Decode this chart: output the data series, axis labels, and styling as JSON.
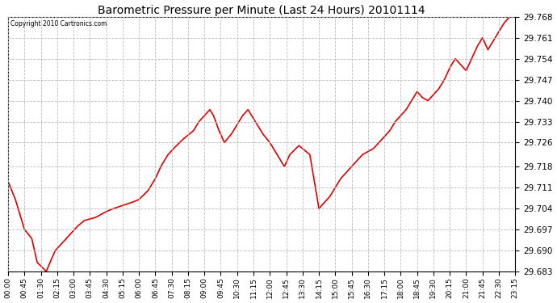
{
  "title": "Barometric Pressure per Minute (Last 24 Hours) 20101114",
  "copyright": "Copyright 2010 Cartronics.com",
  "line_color": "#dd0000",
  "background_color": "#ffffff",
  "grid_color": "#bbbbbb",
  "yticks": [
    29.683,
    29.69,
    29.697,
    29.704,
    29.711,
    29.718,
    29.726,
    29.733,
    29.74,
    29.747,
    29.754,
    29.761,
    29.768
  ],
  "ylim": [
    29.683,
    29.768
  ],
  "xtick_labels": [
    "00:00",
    "00:45",
    "01:30",
    "02:15",
    "03:00",
    "03:45",
    "04:30",
    "05:15",
    "06:00",
    "06:45",
    "07:30",
    "08:15",
    "09:00",
    "09:45",
    "10:30",
    "11:15",
    "12:00",
    "12:45",
    "13:30",
    "14:15",
    "15:00",
    "15:45",
    "16:30",
    "17:15",
    "18:00",
    "18:45",
    "19:30",
    "20:15",
    "21:00",
    "21:45",
    "22:30",
    "23:15"
  ],
  "key_points_x": [
    0,
    20,
    45,
    65,
    80,
    105,
    115,
    130,
    160,
    190,
    210,
    240,
    255,
    270,
    290,
    315,
    340,
    360,
    385,
    405,
    420,
    440,
    455,
    480,
    510,
    525,
    540,
    555,
    565,
    580,
    595,
    615,
    630,
    645,
    660,
    680,
    700,
    720,
    740,
    750,
    760,
    775,
    800,
    830,
    855,
    870,
    885,
    900,
    915,
    930,
    945,
    960,
    975,
    990,
    1005,
    1020,
    1035,
    1050,
    1065,
    1080,
    1095,
    1110,
    1125,
    1140,
    1155,
    1170,
    1185,
    1200,
    1215,
    1230,
    1245,
    1260,
    1275,
    1290,
    1305,
    1320,
    1335,
    1350,
    1365,
    1380,
    1395
  ],
  "key_points_y": [
    29.713,
    29.707,
    29.697,
    29.694,
    29.686,
    29.683,
    29.686,
    29.69,
    29.694,
    29.698,
    29.7,
    29.701,
    29.702,
    29.703,
    29.704,
    29.705,
    29.706,
    29.707,
    29.71,
    29.714,
    29.718,
    29.722,
    29.724,
    29.727,
    29.73,
    29.733,
    29.735,
    29.737,
    29.735,
    29.73,
    29.726,
    29.729,
    29.732,
    29.735,
    29.737,
    29.733,
    29.729,
    29.726,
    29.722,
    29.72,
    29.718,
    29.722,
    29.725,
    29.722,
    29.704,
    29.706,
    29.708,
    29.711,
    29.714,
    29.716,
    29.718,
    29.72,
    29.722,
    29.723,
    29.724,
    29.726,
    29.728,
    29.73,
    29.733,
    29.735,
    29.737,
    29.74,
    29.743,
    29.741,
    29.74,
    29.742,
    29.744,
    29.747,
    29.751,
    29.754,
    29.752,
    29.75,
    29.754,
    29.758,
    29.761,
    29.757,
    29.76,
    29.763,
    29.766,
    29.768,
    29.769
  ]
}
